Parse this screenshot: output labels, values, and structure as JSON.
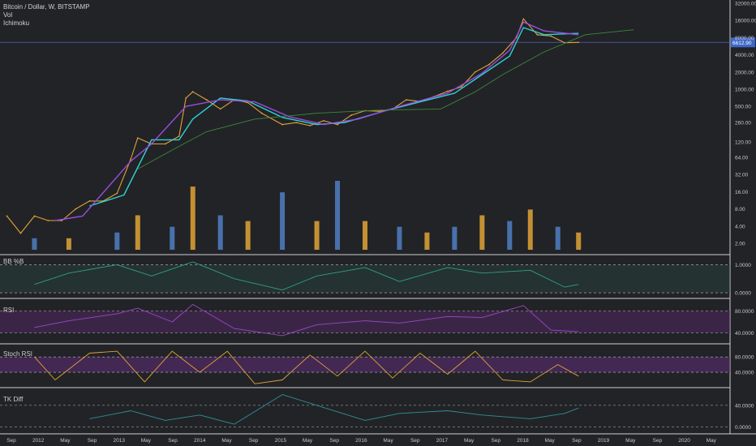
{
  "header": {
    "symbol_line": "Bitcoin / Dollar, W, BITSTAMP",
    "vol_label": "Vol",
    "ichimoku_label": "Ichimoku"
  },
  "price_badge": "6612.90",
  "colors": {
    "background": "#222327",
    "candle_up": "#e0a336",
    "candle_down": "#4f7fc4",
    "tenkan": "#2dd4d4",
    "kijun": "#9a4ee0",
    "lagging": "#3a8a3a",
    "cloud_red": "#8b2020",
    "price_line": "#4f62c0",
    "badge": "#3f67c9"
  },
  "chart_data": [
    {
      "type": "line",
      "name": "price",
      "title": "Bitcoin / Dollar, W, BITSTAMP",
      "scale": "log",
      "y_ticks": [
        "32000.00",
        "16000.00",
        "8000.00",
        "4000.00",
        "2000.00",
        "1000.00",
        "500.00",
        "260.00",
        "120.00",
        "64.00",
        "32.00",
        "16.00",
        "8.00",
        "4.00",
        "2.00"
      ],
      "y_tick_values": [
        32000,
        16000,
        8000,
        4000,
        2000,
        1000,
        500,
        260,
        120,
        64,
        32,
        16,
        8,
        4,
        2
      ],
      "x_ticks": [
        "Sep",
        "2012",
        "May",
        "Sep",
        "2013",
        "May",
        "Sep",
        "2014",
        "May",
        "Sep",
        "2015",
        "May",
        "Sep",
        "2016",
        "May",
        "Sep",
        "2017",
        "May",
        "Sep",
        "2018",
        "May",
        "Sep",
        "2019",
        "May",
        "Sep",
        "2020",
        "May"
      ],
      "x_range": [
        "2011-08",
        "2020-06"
      ],
      "series": [
        {
          "x": [
            "2011-09",
            "2011-11",
            "2012-01",
            "2012-03",
            "2012-05",
            "2012-07",
            "2012-09",
            "2012-11",
            "2013-01",
            "2013-03",
            "2013-04",
            "2013-06",
            "2013-08",
            "2013-10",
            "2013-11",
            "2013-12",
            "2014-02",
            "2014-04",
            "2014-06",
            "2014-08",
            "2014-10",
            "2015-01",
            "2015-03",
            "2015-05",
            "2015-07",
            "2015-09",
            "2015-11",
            "2016-01",
            "2016-03",
            "2016-05",
            "2016-07",
            "2016-09",
            "2016-11",
            "2017-01",
            "2017-03",
            "2017-05",
            "2017-07",
            "2017-09",
            "2017-11",
            "2017-12",
            "2018-02",
            "2018-04",
            "2018-06",
            "2018-08"
          ],
          "values": [
            6,
            3,
            6,
            5,
            5,
            8,
            11,
            11,
            15,
            60,
            140,
            110,
            110,
            150,
            700,
            900,
            650,
            450,
            650,
            580,
            380,
            240,
            260,
            230,
            280,
            240,
            350,
            420,
            410,
            450,
            650,
            610,
            740,
            920,
            1100,
            2000,
            2700,
            4300,
            8000,
            17000,
            9000,
            8500,
            6500,
            6600
          ]
        },
        {
          "name": "tenkan",
          "x": [
            "2012-09",
            "2013-02",
            "2013-06",
            "2013-10",
            "2013-12",
            "2014-04",
            "2014-08",
            "2015-01",
            "2015-06",
            "2015-10",
            "2016-04",
            "2016-09",
            "2017-02",
            "2017-06",
            "2017-10",
            "2017-12",
            "2018-03",
            "2018-08"
          ],
          "values": [
            9,
            14,
            130,
            130,
            300,
            700,
            620,
            320,
            240,
            260,
            420,
            600,
            850,
            1800,
            3800,
            12000,
            9000,
            9500
          ]
        },
        {
          "name": "kijun",
          "x": [
            "2012-04",
            "2012-08",
            "2013-03",
            "2013-06",
            "2013-11",
            "2014-04",
            "2014-09",
            "2015-02",
            "2015-07",
            "2015-12",
            "2016-06",
            "2017-01",
            "2017-06",
            "2017-10",
            "2017-12",
            "2018-03",
            "2018-08"
          ],
          "values": [
            5,
            6,
            55,
            110,
            500,
            650,
            600,
            330,
            240,
            300,
            500,
            850,
            1900,
            4800,
            15000,
            10500,
            9000
          ]
        },
        {
          "name": "lagging",
          "x": [
            "2013-04",
            "2013-10",
            "2014-02",
            "2014-09",
            "2015-06",
            "2016-03",
            "2016-12",
            "2017-05",
            "2017-09",
            "2018-03",
            "2018-09",
            "2019-04"
          ],
          "values": [
            40,
            100,
            180,
            300,
            380,
            430,
            450,
            900,
            1800,
            4500,
            9000,
            11000
          ]
        }
      ]
    },
    {
      "type": "bar",
      "name": "Vol",
      "x": [
        "2012-01",
        "2012-06",
        "2013-01",
        "2013-04",
        "2013-09",
        "2013-12",
        "2014-04",
        "2014-08",
        "2015-01",
        "2015-06",
        "2015-09",
        "2016-01",
        "2016-06",
        "2016-10",
        "2017-02",
        "2017-06",
        "2017-10",
        "2018-01",
        "2018-05",
        "2018-08"
      ],
      "values": [
        1,
        1,
        1.5,
        3,
        2,
        5.5,
        3,
        2.5,
        5,
        2.5,
        6,
        2.5,
        2,
        1.5,
        2,
        3,
        2.5,
        3.5,
        2,
        1.5
      ]
    },
    {
      "type": "line",
      "name": "BB %B",
      "title": "BB %B",
      "y_ticks": [
        "1.0000",
        "0.0000"
      ],
      "y_tick_values": [
        1,
        0
      ],
      "x": [
        "2012-01",
        "2012-06",
        "2013-01",
        "2013-06",
        "2013-12",
        "2014-06",
        "2015-01",
        "2015-06",
        "2016-01",
        "2016-06",
        "2017-01",
        "2017-06",
        "2018-01",
        "2018-06",
        "2018-08"
      ],
      "values": [
        0.3,
        0.7,
        1.0,
        0.6,
        1.1,
        0.5,
        0.1,
        0.6,
        0.9,
        0.4,
        0.9,
        0.7,
        0.8,
        0.2,
        0.3
      ]
    },
    {
      "type": "line",
      "name": "RSI",
      "title": "RSI",
      "y_ticks": [
        "80.0000",
        "40.0000"
      ],
      "y_tick_values": [
        80,
        40
      ],
      "x": [
        "2012-01",
        "2012-06",
        "2013-01",
        "2013-04",
        "2013-09",
        "2013-12",
        "2014-06",
        "2015-01",
        "2015-06",
        "2016-01",
        "2016-06",
        "2017-01",
        "2017-06",
        "2017-12",
        "2018-04",
        "2018-08"
      ],
      "values": [
        50,
        62,
        75,
        85,
        60,
        92,
        48,
        35,
        55,
        62,
        58,
        70,
        68,
        90,
        45,
        42
      ]
    },
    {
      "type": "line",
      "name": "Stoch RSI",
      "title": "Stoch RSI",
      "y_ticks": [
        "80.0000",
        "40.0000"
      ],
      "y_tick_values": [
        80,
        40
      ],
      "x": [
        "2012-01",
        "2012-04",
        "2012-09",
        "2013-01",
        "2013-05",
        "2013-09",
        "2014-01",
        "2014-05",
        "2014-09",
        "2015-01",
        "2015-05",
        "2015-09",
        "2016-01",
        "2016-05",
        "2016-09",
        "2017-01",
        "2017-05",
        "2017-09",
        "2018-01",
        "2018-05",
        "2018-08"
      ],
      "values": [
        80,
        20,
        90,
        95,
        15,
        95,
        40,
        95,
        10,
        20,
        85,
        30,
        95,
        25,
        90,
        35,
        95,
        20,
        15,
        60,
        30
      ]
    },
    {
      "type": "line",
      "name": "TK Diff",
      "title": "TK Diff",
      "y_ticks": [
        "40.0000",
        "0.0000"
      ],
      "y_tick_values": [
        40,
        0
      ],
      "x": [
        "2012-09",
        "2013-03",
        "2013-08",
        "2014-01",
        "2014-06",
        "2015-01",
        "2015-06",
        "2016-01",
        "2016-06",
        "2017-01",
        "2017-06",
        "2018-01",
        "2018-06",
        "2018-08"
      ],
      "values": [
        15,
        30,
        12,
        22,
        5,
        60,
        40,
        12,
        25,
        30,
        22,
        15,
        25,
        35
      ]
    }
  ]
}
